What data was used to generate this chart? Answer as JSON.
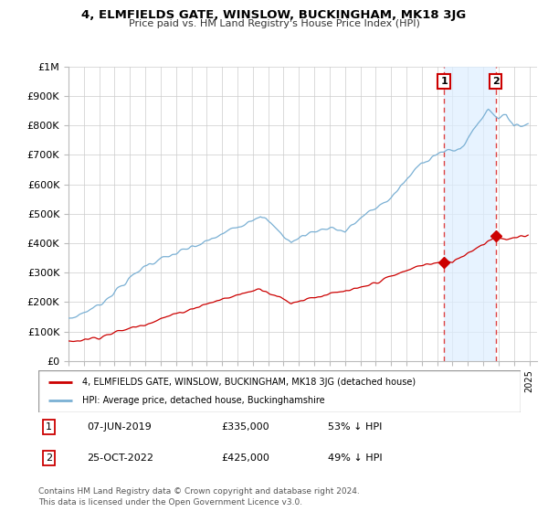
{
  "title": "4, ELMFIELDS GATE, WINSLOW, BUCKINGHAM, MK18 3JG",
  "subtitle": "Price paid vs. HM Land Registry's House Price Index (HPI)",
  "ylim": [
    0,
    1000000
  ],
  "yticks": [
    0,
    100000,
    200000,
    300000,
    400000,
    500000,
    600000,
    700000,
    800000,
    900000,
    1000000
  ],
  "ytick_labels": [
    "£0",
    "£100K",
    "£200K",
    "£300K",
    "£400K",
    "£500K",
    "£600K",
    "£700K",
    "£800K",
    "£900K",
    "£1M"
  ],
  "hpi_color": "#7ab0d4",
  "hpi_fill_color": "#ddeeff",
  "price_color": "#cc0000",
  "vline_color": "#dd4444",
  "background_color": "#ffffff",
  "grid_color": "#cccccc",
  "transaction1_year": 2019.44,
  "transaction1_price": 335000,
  "transaction2_year": 2022.81,
  "transaction2_price": 425000,
  "legend_label_price": "4, ELMFIELDS GATE, WINSLOW, BUCKINGHAM, MK18 3JG (detached house)",
  "legend_label_hpi": "HPI: Average price, detached house, Buckinghamshire",
  "footer": "Contains HM Land Registry data © Crown copyright and database right 2024.\nThis data is licensed under the Open Government Licence v3.0.",
  "table_rows": [
    {
      "num": "1",
      "date": "07-JUN-2019",
      "price": "£335,000",
      "pct": "53% ↓ HPI"
    },
    {
      "num": "2",
      "date": "25-OCT-2022",
      "price": "£425,000",
      "pct": "49% ↓ HPI"
    }
  ]
}
